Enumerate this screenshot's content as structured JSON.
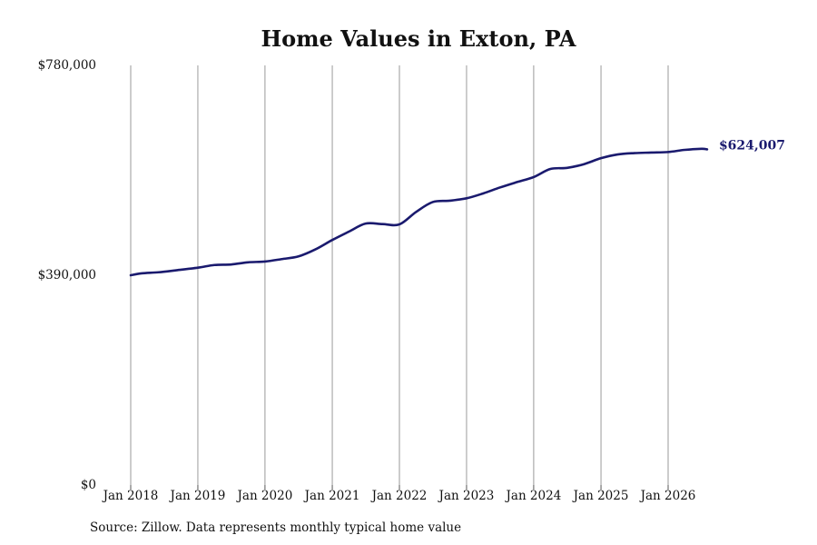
{
  "chart_data": {
    "type": "line",
    "title": "Home Values in Exton, PA",
    "xlabel": "",
    "ylabel": "",
    "ylim": [
      0,
      780000
    ],
    "yticks": [
      0,
      390000,
      780000
    ],
    "ytick_labels": [
      "$0",
      "$390,000",
      "$780,000"
    ],
    "xticks": [
      "2018-01",
      "2019-01",
      "2020-01",
      "2021-01",
      "2022-01",
      "2023-01",
      "2024-01",
      "2025-01",
      "2026-01"
    ],
    "xtick_labels": [
      "Jan 2018",
      "Jan 2019",
      "Jan 2020",
      "Jan 2021",
      "Jan 2022",
      "Jan 2023",
      "Jan 2024",
      "Jan 2025",
      "Jan 2026"
    ],
    "grid": "vertical",
    "line_color": "#1a1a6e",
    "end_label": "$624,007",
    "series": [
      {
        "x": [
          "2018-01",
          "2018-03",
          "2018-06",
          "2018-09",
          "2019-01",
          "2019-04",
          "2019-07",
          "2019-10",
          "2020-01",
          "2020-04",
          "2020-07",
          "2020-10",
          "2021-01",
          "2021-04",
          "2021-07",
          "2021-10",
          "2022-01",
          "2022-04",
          "2022-07",
          "2022-10",
          "2023-01",
          "2023-04",
          "2023-07",
          "2023-10",
          "2024-01",
          "2024-04",
          "2024-07",
          "2024-10",
          "2025-01",
          "2025-04",
          "2025-07",
          "2025-10",
          "2026-01",
          "2026-04",
          "2026-07",
          "2026-08"
        ],
        "y": [
          390000,
          393500,
          395500,
          399000,
          404000,
          409000,
          410000,
          414000,
          415500,
          420000,
          425000,
          438000,
          455500,
          471000,
          486000,
          485000,
          484500,
          507500,
          526000,
          528500,
          533000,
          542000,
          553000,
          563000,
          572500,
          587500,
          589500,
          596500,
          607500,
          614500,
          617000,
          618000,
          619000,
          623000,
          625000,
          624007
        ]
      }
    ]
  },
  "footer": {
    "source": "Source: Zillow. Data represents monthly typical home value"
  }
}
